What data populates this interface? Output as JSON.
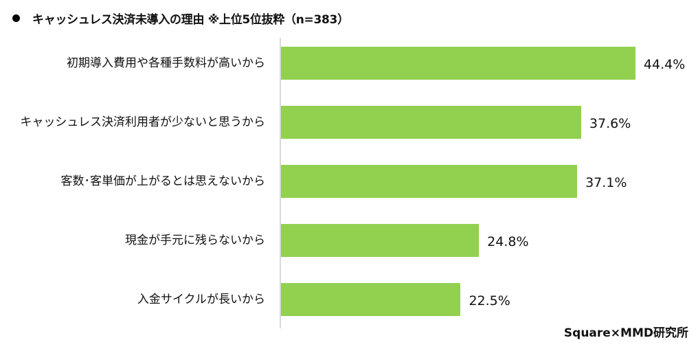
{
  "header": {
    "bullet_icon": "filled-circle",
    "title": "キャッシュレス決済未導入の理由 ※上位5位抜粋（n=383）"
  },
  "footer": {
    "source": "Square×MMD研究所"
  },
  "colors": {
    "bar": "#92d050",
    "axis": "#d9d9d9",
    "text": "#111111"
  },
  "chart_data": {
    "type": "bar",
    "orientation": "horizontal",
    "title": "キャッシュレス決済未導入の理由 ※上位5位抜粋（n=383）",
    "categories": [
      "初期導入費用や各種手数料が高いから",
      "キャッシュレス決済利用者が少ないと思うから",
      "客数･客単価が上がるとは思えないから",
      "現金が手元に残らないから",
      "入金サイクルが長いから"
    ],
    "values": [
      44.4,
      37.6,
      37.1,
      24.8,
      22.5
    ],
    "value_labels": [
      "44.4%",
      "37.6%",
      "37.1%",
      "24.8%",
      "22.5%"
    ],
    "unit": "%",
    "xlabel": "",
    "ylabel": "",
    "grid": false,
    "legend": null,
    "annotations": [
      "Square×MMD研究所"
    ]
  }
}
